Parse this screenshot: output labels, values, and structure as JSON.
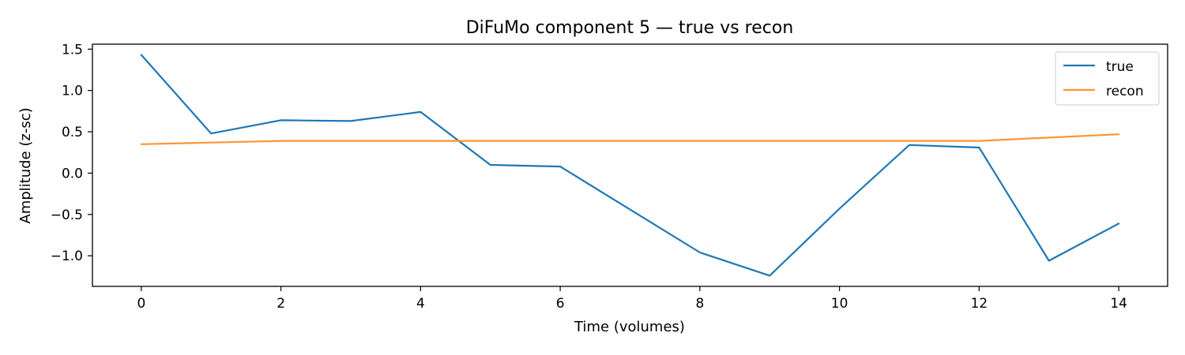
{
  "chart_data": {
    "type": "line",
    "title": "DiFuMo component 5 — true vs recon",
    "xlabel": "Time (volumes)",
    "ylabel": "Amplitude (z-sc)",
    "x": [
      0,
      1,
      2,
      3,
      4,
      5,
      6,
      7,
      8,
      9,
      10,
      11,
      12,
      13,
      14
    ],
    "xlim": [
      -0.7,
      14.7
    ],
    "ylim": [
      -1.37,
      1.56
    ],
    "xticks": [
      0,
      2,
      4,
      6,
      8,
      10,
      12,
      14
    ],
    "xtick_labels": [
      "0",
      "2",
      "4",
      "6",
      "8",
      "10",
      "12",
      "14"
    ],
    "yticks": [
      -1.0,
      -0.5,
      0.0,
      0.5,
      1.0,
      1.5
    ],
    "ytick_labels": [
      "−1.0",
      "−0.5",
      "0.0",
      "0.5",
      "1.0",
      "1.5"
    ],
    "grid": false,
    "legend_position": "top-right",
    "series": [
      {
        "name": "true",
        "color": "#1f77b4",
        "values": [
          1.43,
          0.48,
          0.64,
          0.63,
          0.74,
          0.1,
          0.08,
          -0.44,
          -0.96,
          -1.24,
          -0.43,
          0.34,
          0.31,
          -1.06,
          -0.61
        ]
      },
      {
        "name": "recon",
        "color": "#ff9533",
        "values": [
          0.35,
          0.37,
          0.39,
          0.39,
          0.39,
          0.39,
          0.39,
          0.39,
          0.39,
          0.39,
          0.39,
          0.39,
          0.39,
          0.43,
          0.47
        ]
      }
    ]
  }
}
